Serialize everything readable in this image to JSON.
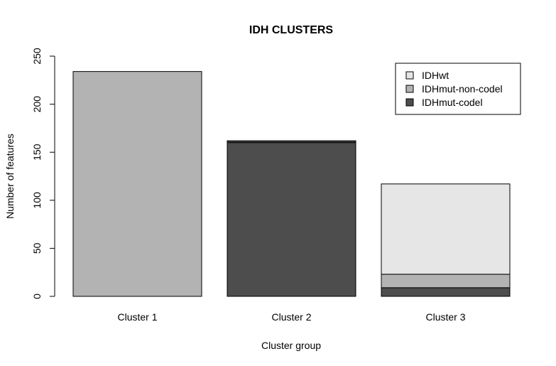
{
  "chart_data": {
    "type": "bar",
    "stacked": true,
    "title": "IDH CLUSTERS",
    "xlabel": "Cluster group",
    "ylabel": "Number of features",
    "categories": [
      "Cluster 1",
      "Cluster 2",
      "Cluster 3"
    ],
    "ylim": [
      0,
      250
    ],
    "yticks": [
      "0",
      "50",
      "100",
      "150",
      "200",
      "250"
    ],
    "grid": false,
    "legend": {
      "position": "top-right",
      "order": [
        "IDHwt",
        "IDHmut-non-codel",
        "IDHmut-codel"
      ]
    },
    "series": [
      {
        "name": "IDHmut-codel",
        "color": "#4d4d4d",
        "values": [
          0,
          160,
          9
        ]
      },
      {
        "name": "IDHmut-non-codel",
        "color": "#b3b3b3",
        "values": [
          234,
          1,
          14
        ]
      },
      {
        "name": "IDHwt",
        "color": "#e6e6e6",
        "values": [
          0,
          1,
          94
        ]
      }
    ]
  }
}
